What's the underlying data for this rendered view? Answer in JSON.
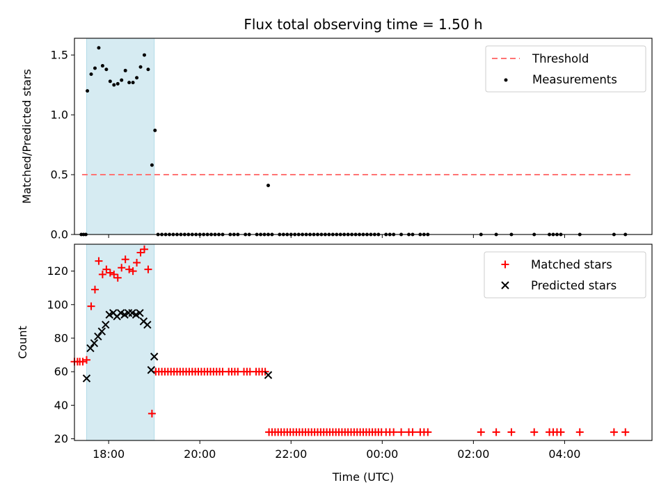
{
  "chart_data": [
    {
      "type": "scatter",
      "title": "Flux total observing time = 1.50 h",
      "xlabel": "",
      "ylabel": "Matched/Predicted stars",
      "ylim": [
        0,
        1.64
      ],
      "yticks": [
        0.0,
        0.5,
        1.0,
        1.5
      ],
      "ytick_labels": [
        "0.0",
        "0.5",
        "1.0",
        "1.5"
      ],
      "xlim": [
        "17:15",
        "05:55"
      ],
      "grid": false,
      "legend_position": "top-right",
      "legend": [
        "Threshold",
        "Measurements"
      ],
      "shaded_interval": {
        "start": "17:31",
        "end": "19:00",
        "color": "#add8e6"
      },
      "threshold": {
        "name": "Threshold",
        "value": 0.5,
        "x_start": "17:25",
        "x_end": "05:30",
        "color": "#ff7373"
      },
      "series": [
        {
          "name": "Measurements",
          "color": "#000000",
          "points": [
            [
              "17:24",
              0.0
            ],
            [
              "17:27",
              0.0
            ],
            [
              "17:30",
              0.0
            ],
            [
              "17:32",
              1.2
            ],
            [
              "17:37",
              1.34
            ],
            [
              "17:42",
              1.39
            ],
            [
              "17:47",
              1.56
            ],
            [
              "17:52",
              1.41
            ],
            [
              "17:57",
              1.38
            ],
            [
              "18:02",
              1.28
            ],
            [
              "18:07",
              1.25
            ],
            [
              "18:12",
              1.26
            ],
            [
              "18:17",
              1.29
            ],
            [
              "18:22",
              1.37
            ],
            [
              "18:27",
              1.27
            ],
            [
              "18:32",
              1.27
            ],
            [
              "18:37",
              1.31
            ],
            [
              "18:42",
              1.4
            ],
            [
              "18:47",
              1.5
            ],
            [
              "18:52",
              1.38
            ],
            [
              "18:57",
              0.58
            ],
            [
              "19:01",
              0.87
            ],
            [
              "19:05",
              0.0
            ],
            [
              "19:10",
              0.0
            ],
            [
              "19:15",
              0.0
            ],
            [
              "19:20",
              0.0
            ],
            [
              "19:25",
              0.0
            ],
            [
              "19:30",
              0.0
            ],
            [
              "19:35",
              0.0
            ],
            [
              "19:40",
              0.0
            ],
            [
              "19:45",
              0.0
            ],
            [
              "19:50",
              0.0
            ],
            [
              "19:55",
              0.0
            ],
            [
              "20:00",
              0.0
            ],
            [
              "20:05",
              0.0
            ],
            [
              "20:10",
              0.0
            ],
            [
              "20:15",
              0.0
            ],
            [
              "20:20",
              0.0
            ],
            [
              "20:25",
              0.0
            ],
            [
              "20:30",
              0.0
            ],
            [
              "20:40",
              0.0
            ],
            [
              "20:45",
              0.0
            ],
            [
              "20:50",
              0.0
            ],
            [
              "21:00",
              0.0
            ],
            [
              "21:05",
              0.0
            ],
            [
              "21:15",
              0.0
            ],
            [
              "21:20",
              0.0
            ],
            [
              "21:25",
              0.0
            ],
            [
              "21:30",
              0.0
            ],
            [
              "21:35",
              0.0
            ],
            [
              "21:30",
              0.41
            ],
            [
              "21:45",
              0.0
            ],
            [
              "21:50",
              0.0
            ],
            [
              "21:55",
              0.0
            ],
            [
              "22:00",
              0.0
            ],
            [
              "22:05",
              0.0
            ],
            [
              "22:10",
              0.0
            ],
            [
              "22:15",
              0.0
            ],
            [
              "22:20",
              0.0
            ],
            [
              "22:25",
              0.0
            ],
            [
              "22:30",
              0.0
            ],
            [
              "22:35",
              0.0
            ],
            [
              "22:40",
              0.0
            ],
            [
              "22:45",
              0.0
            ],
            [
              "22:50",
              0.0
            ],
            [
              "22:55",
              0.0
            ],
            [
              "23:00",
              0.0
            ],
            [
              "23:05",
              0.0
            ],
            [
              "23:10",
              0.0
            ],
            [
              "23:15",
              0.0
            ],
            [
              "23:20",
              0.0
            ],
            [
              "23:25",
              0.0
            ],
            [
              "23:30",
              0.0
            ],
            [
              "23:35",
              0.0
            ],
            [
              "23:40",
              0.0
            ],
            [
              "23:45",
              0.0
            ],
            [
              "23:50",
              0.0
            ],
            [
              "23:55",
              0.0
            ],
            [
              "00:05",
              0.0
            ],
            [
              "00:10",
              0.0
            ],
            [
              "00:15",
              0.0
            ],
            [
              "00:25",
              0.0
            ],
            [
              "00:35",
              0.0
            ],
            [
              "00:40",
              0.0
            ],
            [
              "00:50",
              0.0
            ],
            [
              "00:55",
              0.0
            ],
            [
              "01:00",
              0.0
            ],
            [
              "02:10",
              0.0
            ],
            [
              "02:30",
              0.0
            ],
            [
              "02:50",
              0.0
            ],
            [
              "03:20",
              0.0
            ],
            [
              "03:40",
              0.0
            ],
            [
              "03:45",
              0.0
            ],
            [
              "03:50",
              0.0
            ],
            [
              "03:55",
              0.0
            ],
            [
              "04:20",
              0.0
            ],
            [
              "05:05",
              0.0
            ],
            [
              "05:20",
              0.0
            ]
          ]
        }
      ]
    },
    {
      "type": "scatter",
      "title": "",
      "xlabel": "Time (UTC)",
      "ylabel": "Count",
      "ylim": [
        19,
        136
      ],
      "yticks": [
        20,
        40,
        60,
        80,
        100,
        120
      ],
      "ytick_labels": [
        "20",
        "40",
        "60",
        "80",
        "100",
        "120"
      ],
      "xlim": [
        "17:15",
        "05:55"
      ],
      "xticks": [
        "18:00",
        "20:00",
        "22:00",
        "00:00",
        "02:00",
        "04:00"
      ],
      "grid": false,
      "legend_position": "top-right",
      "legend": [
        "Matched stars",
        "Predicted stars"
      ],
      "shaded_interval": {
        "start": "17:31",
        "end": "19:00",
        "color": "#add8e6"
      },
      "series": [
        {
          "name": "Matched stars",
          "color": "#ff0000",
          "marker": "plus",
          "points": [
            [
              "17:15",
              66
            ],
            [
              "17:19",
              66
            ],
            [
              "17:22",
              66
            ],
            [
              "17:26",
              66
            ],
            [
              "17:31",
              67
            ],
            [
              "17:37",
              99
            ],
            [
              "17:42",
              109
            ],
            [
              "17:47",
              126
            ],
            [
              "17:52",
              118
            ],
            [
              "17:57",
              121
            ],
            [
              "18:02",
              119
            ],
            [
              "18:07",
              118
            ],
            [
              "18:12",
              116
            ],
            [
              "18:17",
              122
            ],
            [
              "18:22",
              127
            ],
            [
              "18:27",
              121
            ],
            [
              "18:32",
              120
            ],
            [
              "18:37",
              125
            ],
            [
              "18:42",
              131
            ],
            [
              "18:47",
              133
            ],
            [
              "18:52",
              121
            ],
            [
              "18:57",
              35
            ],
            [
              "19:02",
              60
            ],
            [
              "19:06",
              60
            ],
            [
              "19:10",
              60
            ],
            [
              "19:14",
              60
            ],
            [
              "19:18",
              60
            ],
            [
              "19:22",
              60
            ],
            [
              "19:26",
              60
            ],
            [
              "19:30",
              60
            ],
            [
              "19:34",
              60
            ],
            [
              "19:38",
              60
            ],
            [
              "19:42",
              60
            ],
            [
              "19:46",
              60
            ],
            [
              "19:50",
              60
            ],
            [
              "19:54",
              60
            ],
            [
              "19:58",
              60
            ],
            [
              "20:02",
              60
            ],
            [
              "20:06",
              60
            ],
            [
              "20:10",
              60
            ],
            [
              "20:14",
              60
            ],
            [
              "20:18",
              60
            ],
            [
              "20:22",
              60
            ],
            [
              "20:26",
              60
            ],
            [
              "20:30",
              60
            ],
            [
              "20:38",
              60
            ],
            [
              "20:42",
              60
            ],
            [
              "20:46",
              60
            ],
            [
              "20:50",
              60
            ],
            [
              "20:58",
              60
            ],
            [
              "21:02",
              60
            ],
            [
              "21:06",
              60
            ],
            [
              "21:14",
              60
            ],
            [
              "21:18",
              60
            ],
            [
              "21:22",
              60
            ],
            [
              "21:26",
              60
            ],
            [
              "21:31",
              24
            ],
            [
              "21:35",
              24
            ],
            [
              "21:39",
              24
            ],
            [
              "21:43",
              24
            ],
            [
              "21:47",
              24
            ],
            [
              "21:51",
              24
            ],
            [
              "21:55",
              24
            ],
            [
              "21:59",
              24
            ],
            [
              "22:03",
              24
            ],
            [
              "22:07",
              24
            ],
            [
              "22:11",
              24
            ],
            [
              "22:15",
              24
            ],
            [
              "22:19",
              24
            ],
            [
              "22:23",
              24
            ],
            [
              "22:27",
              24
            ],
            [
              "22:31",
              24
            ],
            [
              "22:35",
              24
            ],
            [
              "22:39",
              24
            ],
            [
              "22:43",
              24
            ],
            [
              "22:47",
              24
            ],
            [
              "22:51",
              24
            ],
            [
              "22:55",
              24
            ],
            [
              "22:59",
              24
            ],
            [
              "23:03",
              24
            ],
            [
              "23:07",
              24
            ],
            [
              "23:11",
              24
            ],
            [
              "23:15",
              24
            ],
            [
              "23:19",
              24
            ],
            [
              "23:23",
              24
            ],
            [
              "23:27",
              24
            ],
            [
              "23:31",
              24
            ],
            [
              "23:35",
              24
            ],
            [
              "23:39",
              24
            ],
            [
              "23:43",
              24
            ],
            [
              "23:47",
              24
            ],
            [
              "23:51",
              24
            ],
            [
              "23:55",
              24
            ],
            [
              "23:59",
              24
            ],
            [
              "00:05",
              24
            ],
            [
              "00:10",
              24
            ],
            [
              "00:15",
              24
            ],
            [
              "00:25",
              24
            ],
            [
              "00:35",
              24
            ],
            [
              "00:40",
              24
            ],
            [
              "00:50",
              24
            ],
            [
              "00:55",
              24
            ],
            [
              "01:00",
              24
            ],
            [
              "02:10",
              24
            ],
            [
              "02:30",
              24
            ],
            [
              "02:50",
              24
            ],
            [
              "03:20",
              24
            ],
            [
              "03:40",
              24
            ],
            [
              "03:45",
              24
            ],
            [
              "03:50",
              24
            ],
            [
              "03:55",
              24
            ],
            [
              "04:20",
              24
            ],
            [
              "05:05",
              24
            ],
            [
              "05:20",
              24
            ]
          ]
        },
        {
          "name": "Predicted stars",
          "color": "#000000",
          "marker": "x",
          "points": [
            [
              "17:31",
              56
            ],
            [
              "17:36",
              74
            ],
            [
              "17:41",
              77
            ],
            [
              "17:46",
              81
            ],
            [
              "17:51",
              84
            ],
            [
              "17:56",
              88
            ],
            [
              "18:01",
              94
            ],
            [
              "18:06",
              95
            ],
            [
              "18:11",
              93
            ],
            [
              "18:16",
              95
            ],
            [
              "18:21",
              94
            ],
            [
              "18:26",
              95
            ],
            [
              "18:31",
              95
            ],
            [
              "18:36",
              94
            ],
            [
              "18:41",
              95
            ],
            [
              "18:46",
              90
            ],
            [
              "18:51",
              88
            ],
            [
              "18:56",
              61
            ],
            [
              "19:00",
              69
            ],
            [
              "21:30",
              58
            ]
          ]
        }
      ]
    }
  ]
}
